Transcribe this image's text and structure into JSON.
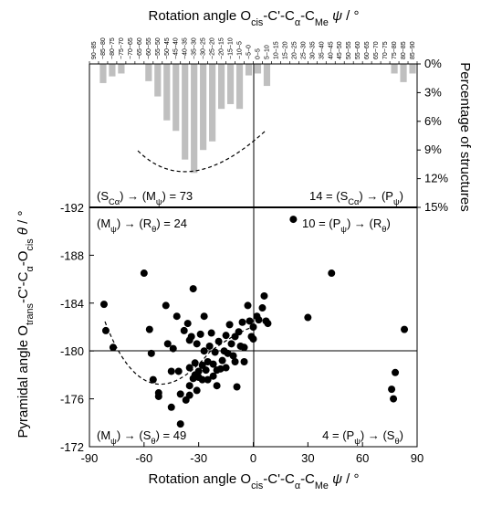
{
  "chart_data": [
    {
      "type": "bar",
      "title": "Rotation angle O<sub>cis</sub>-C'-C<sub>α</sub>-C<sub>Me</sub> ψ / °",
      "ylabel": "Percentage of structures",
      "ylim": [
        0,
        15
      ],
      "y_ticks": [
        "0%",
        "3%",
        "6%",
        "9%",
        "12%",
        "15%"
      ],
      "categories": [
        "90−85",
        "−85−80",
        "−80−75",
        "−75−70",
        "−70−65",
        "−65−60",
        "−60−55",
        "−55−50",
        "−50−45",
        "−45−40",
        "−40−35",
        "−35−30",
        "−30−25",
        "−25−20",
        "−20−15",
        "−15−10",
        "−10−5",
        "−5−0",
        "0−5",
        "5−10",
        "10−15",
        "15−20",
        "20−25",
        "25−30",
        "30−35",
        "35−40",
        "40−45",
        "45−50",
        "50−55",
        "55−60",
        "60−65",
        "65−70",
        "70−75",
        "75−80",
        "80−85",
        "85−90"
      ],
      "values": [
        0,
        2.0,
        1.3,
        1.0,
        0,
        0,
        1.8,
        3.4,
        5.9,
        7.0,
        10.0,
        11.4,
        9.0,
        8.1,
        4.7,
        4.2,
        4.7,
        1.2,
        1.0,
        2.3,
        0,
        0,
        0,
        0,
        0,
        0,
        0,
        0,
        0,
        0,
        0,
        0,
        0,
        1.0,
        1.9,
        1.0
      ],
      "annotations": {
        "left": "(S<sub>Cα</sub>) → (M<sub>ψ</sub>) = 73",
        "right": "14 = (S<sub>Cα</sub>) → (P<sub>ψ</sub>)"
      }
    },
    {
      "type": "scatter",
      "xlabel": "Rotation angle O<sub>cis</sub>-C'-C<sub>α</sub>-C<sub>Me</sub> ψ / °",
      "ylabel": "Pyramidal angle O<sub>trans</sub>-C'-C<sub>α</sub>-O<sub>cis</sub> θ / °",
      "xlim": [
        -90,
        90
      ],
      "ylim": [
        -192,
        -172
      ],
      "y_reversed": true,
      "x_ticks": [
        "-90",
        "-60",
        "-30",
        "0",
        "30",
        "60",
        "90"
      ],
      "y_ticks": [
        "-192",
        "-188",
        "-184",
        "-180",
        "-176",
        "-172"
      ],
      "points": [
        [
          -82,
          -183.9
        ],
        [
          -81,
          -181.7
        ],
        [
          -77,
          -180.3
        ],
        [
          -60,
          -186.5
        ],
        [
          -57,
          -181.8
        ],
        [
          -56,
          -179.8
        ],
        [
          -55,
          -177.6
        ],
        [
          -52,
          -176.5
        ],
        [
          -52,
          -176.2
        ],
        [
          -48,
          -183.8
        ],
        [
          -47,
          -180.6
        ],
        [
          -45,
          -178.3
        ],
        [
          -45,
          -175.3
        ],
        [
          -44,
          -180.2
        ],
        [
          -42,
          -182.9
        ],
        [
          -41,
          -178.3
        ],
        [
          -40,
          -176.4
        ],
        [
          -40,
          -173.9
        ],
        [
          -38,
          -181.7
        ],
        [
          -37,
          -175.9
        ],
        [
          -36,
          -182.3
        ],
        [
          -35,
          -180.9
        ],
        [
          -35,
          -178.6
        ],
        [
          -35,
          -177.1
        ],
        [
          -35,
          -176.3
        ],
        [
          -34,
          -181.2
        ],
        [
          -33,
          -177.7
        ],
        [
          -33,
          -185.2
        ],
        [
          -32,
          -179.0
        ],
        [
          -32,
          -178.0
        ],
        [
          -31,
          -180.6
        ],
        [
          -31,
          -176.7
        ],
        [
          -30,
          -178.3
        ],
        [
          -30,
          -177.8
        ],
        [
          -29,
          -181.4
        ],
        [
          -28,
          -178.8
        ],
        [
          -28,
          -177.6
        ],
        [
          -27,
          -182.9
        ],
        [
          -27,
          -180.0
        ],
        [
          -26,
          -178.4
        ],
        [
          -25,
          -179.1
        ],
        [
          -25,
          -177.6
        ],
        [
          -24,
          -180.4
        ],
        [
          -23,
          -181.5
        ],
        [
          -22,
          -178.9
        ],
        [
          -22,
          -177.9
        ],
        [
          -21,
          -179.9
        ],
        [
          -20,
          -178.4
        ],
        [
          -20,
          -177.1
        ],
        [
          -19,
          -180.8
        ],
        [
          -18,
          -178.5
        ],
        [
          -17,
          -179.2
        ],
        [
          -16,
          -180.0
        ],
        [
          -15,
          -181.3
        ],
        [
          -15,
          -178.6
        ],
        [
          -14,
          -179.8
        ],
        [
          -13,
          -182.2
        ],
        [
          -12,
          -180.6
        ],
        [
          -11,
          -179.6
        ],
        [
          -10,
          -181.2
        ],
        [
          -10,
          -179.1
        ],
        [
          -9,
          -177.0
        ],
        [
          -8,
          -181.6
        ],
        [
          -7,
          -180.4
        ],
        [
          -6,
          -182.4
        ],
        [
          -5,
          -180.3
        ],
        [
          -5,
          -179.1
        ],
        [
          -3,
          -183.8
        ],
        [
          -2,
          -182.5
        ],
        [
          -1,
          -181.2
        ],
        [
          0,
          -181.0
        ],
        [
          0,
          -182.0
        ],
        [
          2,
          -182.9
        ],
        [
          3,
          -182.6
        ],
        [
          5,
          -183.6
        ],
        [
          6,
          -184.6
        ],
        [
          7,
          -182.5
        ],
        [
          8,
          -182.3
        ],
        [
          22,
          -191.0
        ],
        [
          30,
          -182.8
        ],
        [
          43,
          -186.5
        ],
        [
          76,
          -176.8
        ],
        [
          77,
          -176.0
        ],
        [
          78,
          -178.2
        ],
        [
          83,
          -181.8
        ]
      ],
      "annotations": {
        "top_left": "(M<sub>ψ</sub>) → (R<sub>θ</sub>) = 24",
        "top_right": "10 = (P<sub>ψ</sub>) → (R<sub>θ</sub>)",
        "bottom_left": "(M<sub>ψ</sub>) → (S<sub>θ</sub>) = 49",
        "bottom_right": "4 = (P<sub>ψ</sub>) → (S<sub>θ</sub>)"
      }
    }
  ]
}
